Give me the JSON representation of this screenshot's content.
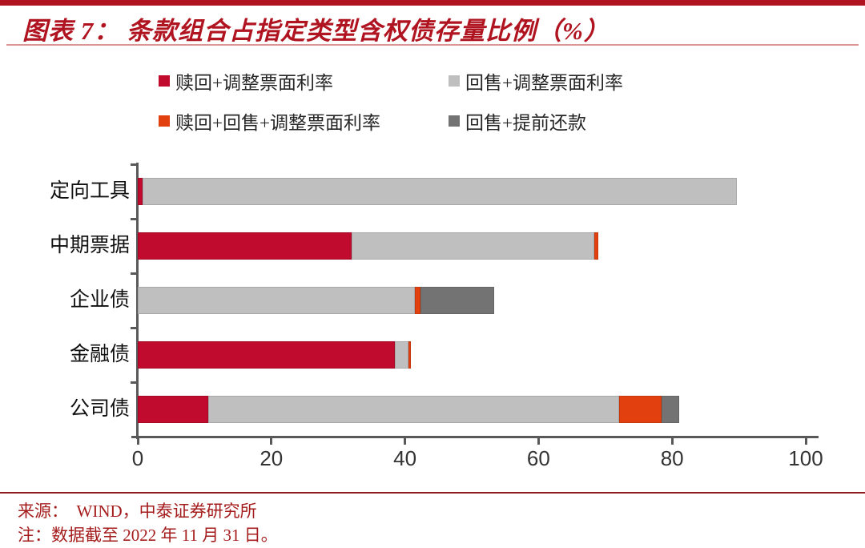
{
  "header": {
    "title": "图表 7：  条款组合占指定类型含权债存量比例（%）"
  },
  "footer": {
    "source": "来源：  WIND，中泰证券研究所",
    "note": "注：数据截至 2022 年 11 月 31 日。"
  },
  "colors": {
    "brand_red": "#B01420",
    "title_underline": "#D99694",
    "axis": "#595959",
    "footer_text": "#A51C1C"
  },
  "chart_data": {
    "type": "bar",
    "orientation": "horizontal",
    "stacked": true,
    "title": "条款组合占指定类型含权债存量比例（%）",
    "categories": [
      "定向工具",
      "中期票据",
      "企业债",
      "金融债",
      "公司债"
    ],
    "series": [
      {
        "name": "赎回+调整票面利率",
        "color": "#C00A2E",
        "values": [
          0.7,
          32.0,
          0,
          38.5,
          10.6
        ]
      },
      {
        "name": "回售+调整票面利率",
        "color": "#BFBFBF",
        "values": [
          89.0,
          36.4,
          41.5,
          2.0,
          61.5
        ]
      },
      {
        "name": "赎回+回售+调整票面利率",
        "color": "#E2400F",
        "values": [
          0,
          0.5,
          0.8,
          0.4,
          6.3
        ]
      },
      {
        "name": "回售+提前还款",
        "color": "#737373",
        "values": [
          0,
          0,
          11.0,
          0,
          2.6
        ]
      }
    ],
    "xlabel": "",
    "ylabel": "",
    "xlim": [
      0,
      100
    ],
    "xticks": [
      0,
      20,
      40,
      60,
      80,
      100
    ],
    "legend_position": "top",
    "grid": false
  }
}
